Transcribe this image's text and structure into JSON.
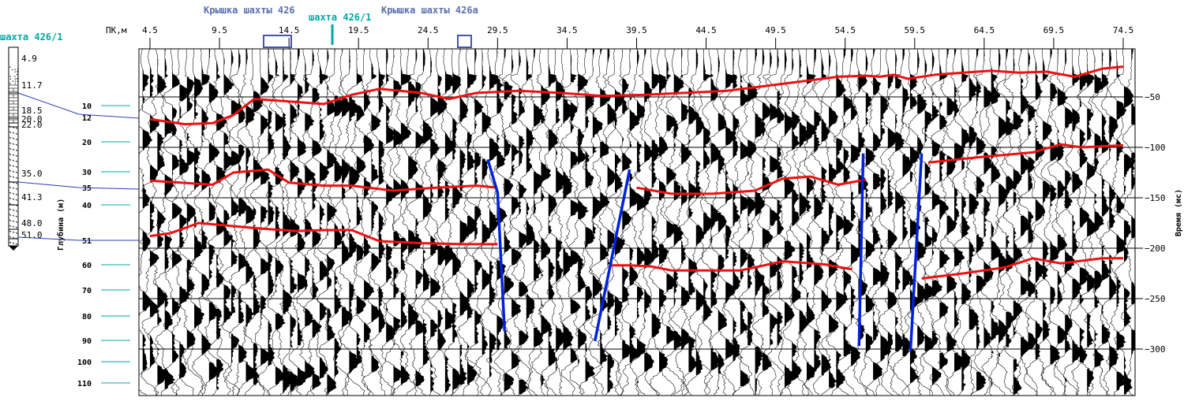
{
  "chart_data": {
    "type": "seismic_section",
    "pk_label": "ПК,м",
    "pk_ticks": [
      "4.5",
      "9.5",
      "14.5",
      "19.5",
      "24.5",
      "29.5",
      "34.5",
      "39.5",
      "44.5",
      "49.5",
      "54.5",
      "59.5",
      "64.5",
      "69.5",
      "74.5"
    ],
    "pk_range": [
      4.5,
      74.5
    ],
    "time_label": "Время (мс)",
    "time_ticks": [
      50,
      100,
      150,
      200,
      250,
      300
    ],
    "time_range": [
      0,
      345
    ],
    "depth_label": "Глубина (м)",
    "depth_ticks": [
      "10",
      "20",
      "30",
      "40",
      "60",
      "70",
      "80",
      "90",
      "100",
      "110"
    ],
    "depth_marker_labels": [
      "12",
      "35",
      "51"
    ],
    "well": {
      "title": "шахта 426/1",
      "depths": [
        "4.9",
        "11.7",
        "18.5",
        "20.0",
        "22.0",
        "35.0",
        "41.3",
        "48.0",
        "51.0"
      ]
    },
    "annotations": [
      {
        "text": "Крышка шахты 426",
        "pk_from": 12.5,
        "pk_to": 14.5
      },
      {
        "text": "шахта 426/1",
        "pk": 17.5
      },
      {
        "text": "Крышка шахты 426а",
        "pk_from": 26.8,
        "pk_to": 27.8
      }
    ],
    "horizons": [
      {
        "name": "",
        "color": "#ee1111",
        "points": [
          [
            4.5,
            72
          ],
          [
            7,
            77
          ],
          [
            9,
            76
          ],
          [
            10.5,
            68
          ],
          [
            12,
            52
          ],
          [
            15,
            55
          ],
          [
            17,
            57
          ],
          [
            19,
            48
          ],
          [
            21,
            42
          ],
          [
            24,
            46
          ],
          [
            26,
            52
          ],
          [
            28,
            46
          ],
          [
            31,
            44
          ],
          [
            34,
            46
          ],
          [
            37,
            49
          ],
          [
            40,
            48
          ],
          [
            46,
            44
          ],
          [
            50,
            37
          ],
          [
            54,
            30
          ],
          [
            56,
            29
          ],
          [
            57,
            30
          ],
          [
            58,
            28
          ],
          [
            59,
            32
          ],
          [
            61,
            28
          ],
          [
            65,
            24
          ],
          [
            67,
            26
          ],
          [
            69,
            25
          ],
          [
            71,
            30
          ],
          [
            73,
            22
          ],
          [
            74.5,
            20
          ]
        ]
      },
      {
        "name": "",
        "color": "#ee1111",
        "points": [
          [
            4.5,
            133
          ],
          [
            9,
            137
          ],
          [
            10.5,
            125
          ],
          [
            13,
            122
          ],
          [
            14.5,
            135
          ],
          [
            17,
            138
          ],
          [
            19,
            138
          ],
          [
            22,
            143
          ],
          [
            25,
            140
          ],
          [
            28,
            138
          ],
          [
            29.5,
            140
          ]
        ]
      },
      {
        "name": "",
        "color": "#ee1111",
        "points": [
          [
            39.5,
            140
          ],
          [
            42,
            146
          ],
          [
            45,
            146
          ],
          [
            48,
            143
          ],
          [
            50,
            131
          ],
          [
            52,
            129
          ],
          [
            54,
            137
          ],
          [
            56,
            132
          ]
        ]
      },
      {
        "name": "",
        "color": "#ee1111",
        "points": [
          [
            60.5,
            115
          ],
          [
            64,
            110
          ],
          [
            68,
            105
          ],
          [
            70,
            97
          ],
          [
            71.5,
            100
          ],
          [
            74.5,
            98
          ]
        ]
      },
      {
        "name": "",
        "color": "#ee1111",
        "points": [
          [
            4.5,
            188
          ],
          [
            6,
            185
          ],
          [
            8,
            175
          ],
          [
            12,
            180
          ],
          [
            15,
            183
          ],
          [
            17,
            182
          ],
          [
            19,
            182
          ],
          [
            21,
            193
          ],
          [
            24,
            195
          ],
          [
            27,
            196
          ],
          [
            29.5,
            196
          ]
        ]
      },
      {
        "name": "",
        "color": "#ee1111",
        "points": [
          [
            37.5,
            217
          ],
          [
            39,
            217
          ],
          [
            40.5,
            218
          ],
          [
            42,
            222
          ],
          [
            44,
            222
          ],
          [
            47,
            222
          ],
          [
            50,
            213
          ],
          [
            53,
            216
          ],
          [
            55,
            221
          ]
        ]
      },
      {
        "name": "",
        "color": "#ee1111",
        "points": [
          [
            60,
            230
          ],
          [
            63,
            225
          ],
          [
            66,
            219
          ],
          [
            68,
            210
          ],
          [
            70,
            215
          ],
          [
            73,
            210
          ],
          [
            74.5,
            210
          ]
        ]
      }
    ],
    "faults": [
      {
        "color": "#0022dd",
        "points": [
          [
            28.8,
            112
          ],
          [
            29.5,
            145
          ],
          [
            30,
            282
          ]
        ]
      },
      {
        "color": "#0022dd",
        "points": [
          [
            39,
            122
          ],
          [
            36.5,
            292
          ]
        ]
      },
      {
        "color": "#0022dd",
        "points": [
          [
            55.8,
            106
          ],
          [
            55.5,
            297
          ]
        ]
      },
      {
        "color": "#0022dd",
        "points": [
          [
            60,
            106
          ],
          [
            59.2,
            302
          ]
        ]
      }
    ]
  }
}
